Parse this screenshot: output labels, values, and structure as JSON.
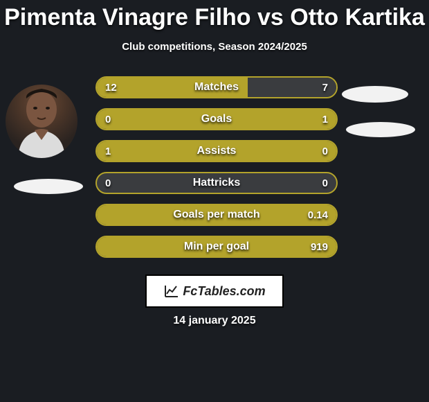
{
  "title": "Pimenta Vinagre Filho vs Otto Kartika",
  "subtitle": "Club competitions, Season 2024/2025",
  "date": "14 january 2025",
  "logo_text": "FcTables.com",
  "colors": {
    "background": "#1a1d22",
    "accent": "#b3a32b",
    "accent_dark": "#8e7f1c",
    "bar_track": "#3a3c3f",
    "text": "#ffffff",
    "badge": "#f2f2f2"
  },
  "bars": [
    {
      "label": "Matches",
      "left_val": "12",
      "right_val": "7",
      "left_frac": 0.63,
      "right_frac": 0.37
    },
    {
      "label": "Goals",
      "left_val": "0",
      "right_val": "1",
      "left_frac": 0.0,
      "right_frac": 1.0
    },
    {
      "label": "Assists",
      "left_val": "1",
      "right_val": "0",
      "left_frac": 1.0,
      "right_frac": 0.0
    },
    {
      "label": "Hattricks",
      "left_val": "0",
      "right_val": "0",
      "left_frac": 0.0,
      "right_frac": 0.0
    },
    {
      "label": "Goals per match",
      "left_val": "",
      "right_val": "0.14",
      "left_frac": 0.0,
      "right_frac": 1.0
    },
    {
      "label": "Min per goal",
      "left_val": "",
      "right_val": "919",
      "left_frac": 0.0,
      "right_frac": 1.0
    }
  ]
}
